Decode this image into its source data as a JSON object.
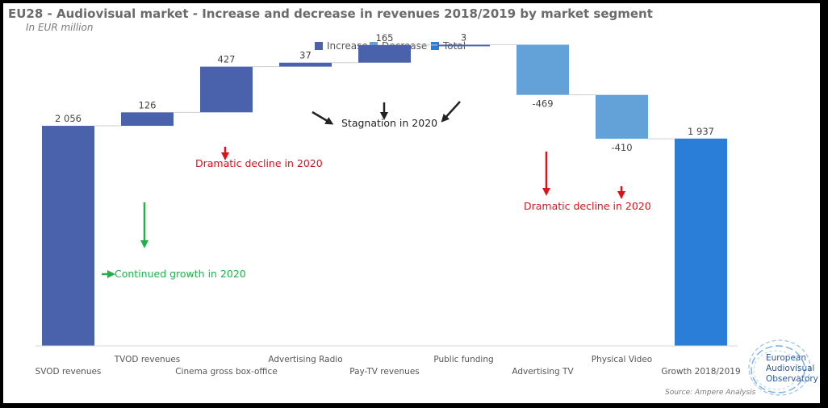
{
  "chart_data": {
    "type": "waterfall",
    "title": "EU28 - Audiovisual market - Increase and decrease in revenues 2018/2019 by market segment",
    "subtitle": "In EUR million",
    "legend": [
      {
        "name": "Increase",
        "color": "#4a62ac"
      },
      {
        "name": "Decrease",
        "color": "#63a2d8"
      },
      {
        "name": "Total",
        "color": "#2a7ed7"
      }
    ],
    "legend_position": "top-center",
    "categories": [
      "SVOD revenues",
      "TVOD revenues",
      "Cinema gross box-office",
      "Advertising Radio",
      "Pay-TV revenues",
      "Public funding",
      "Advertising TV",
      "Physical Video",
      "Growth  2018/2019"
    ],
    "values": [
      2056,
      126,
      427,
      37,
      165,
      3,
      -469,
      -410,
      1937
    ],
    "value_labels": [
      "2 056",
      "126",
      "427",
      "37",
      "165",
      "3",
      "-469",
      "-410",
      "1 937"
    ],
    "kinds": [
      "increase",
      "increase",
      "increase",
      "increase",
      "increase",
      "increase",
      "decrease",
      "decrease",
      "total"
    ],
    "ylim": [
      0,
      2900
    ],
    "annotations": [
      {
        "text": "Continued growth in 2020",
        "color": "#22b04b"
      },
      {
        "text": "Dramatic decline in 2020",
        "color": "#d9141b"
      },
      {
        "text": "Stagnation in 2020",
        "color": "#222222"
      },
      {
        "text": "Dramatic decline in 2020",
        "color": "#d9141b"
      }
    ],
    "source": "Source: Ampere Analysis"
  },
  "logo": {
    "lines": [
      "European",
      "Audiovisual",
      "Observatory"
    ]
  }
}
